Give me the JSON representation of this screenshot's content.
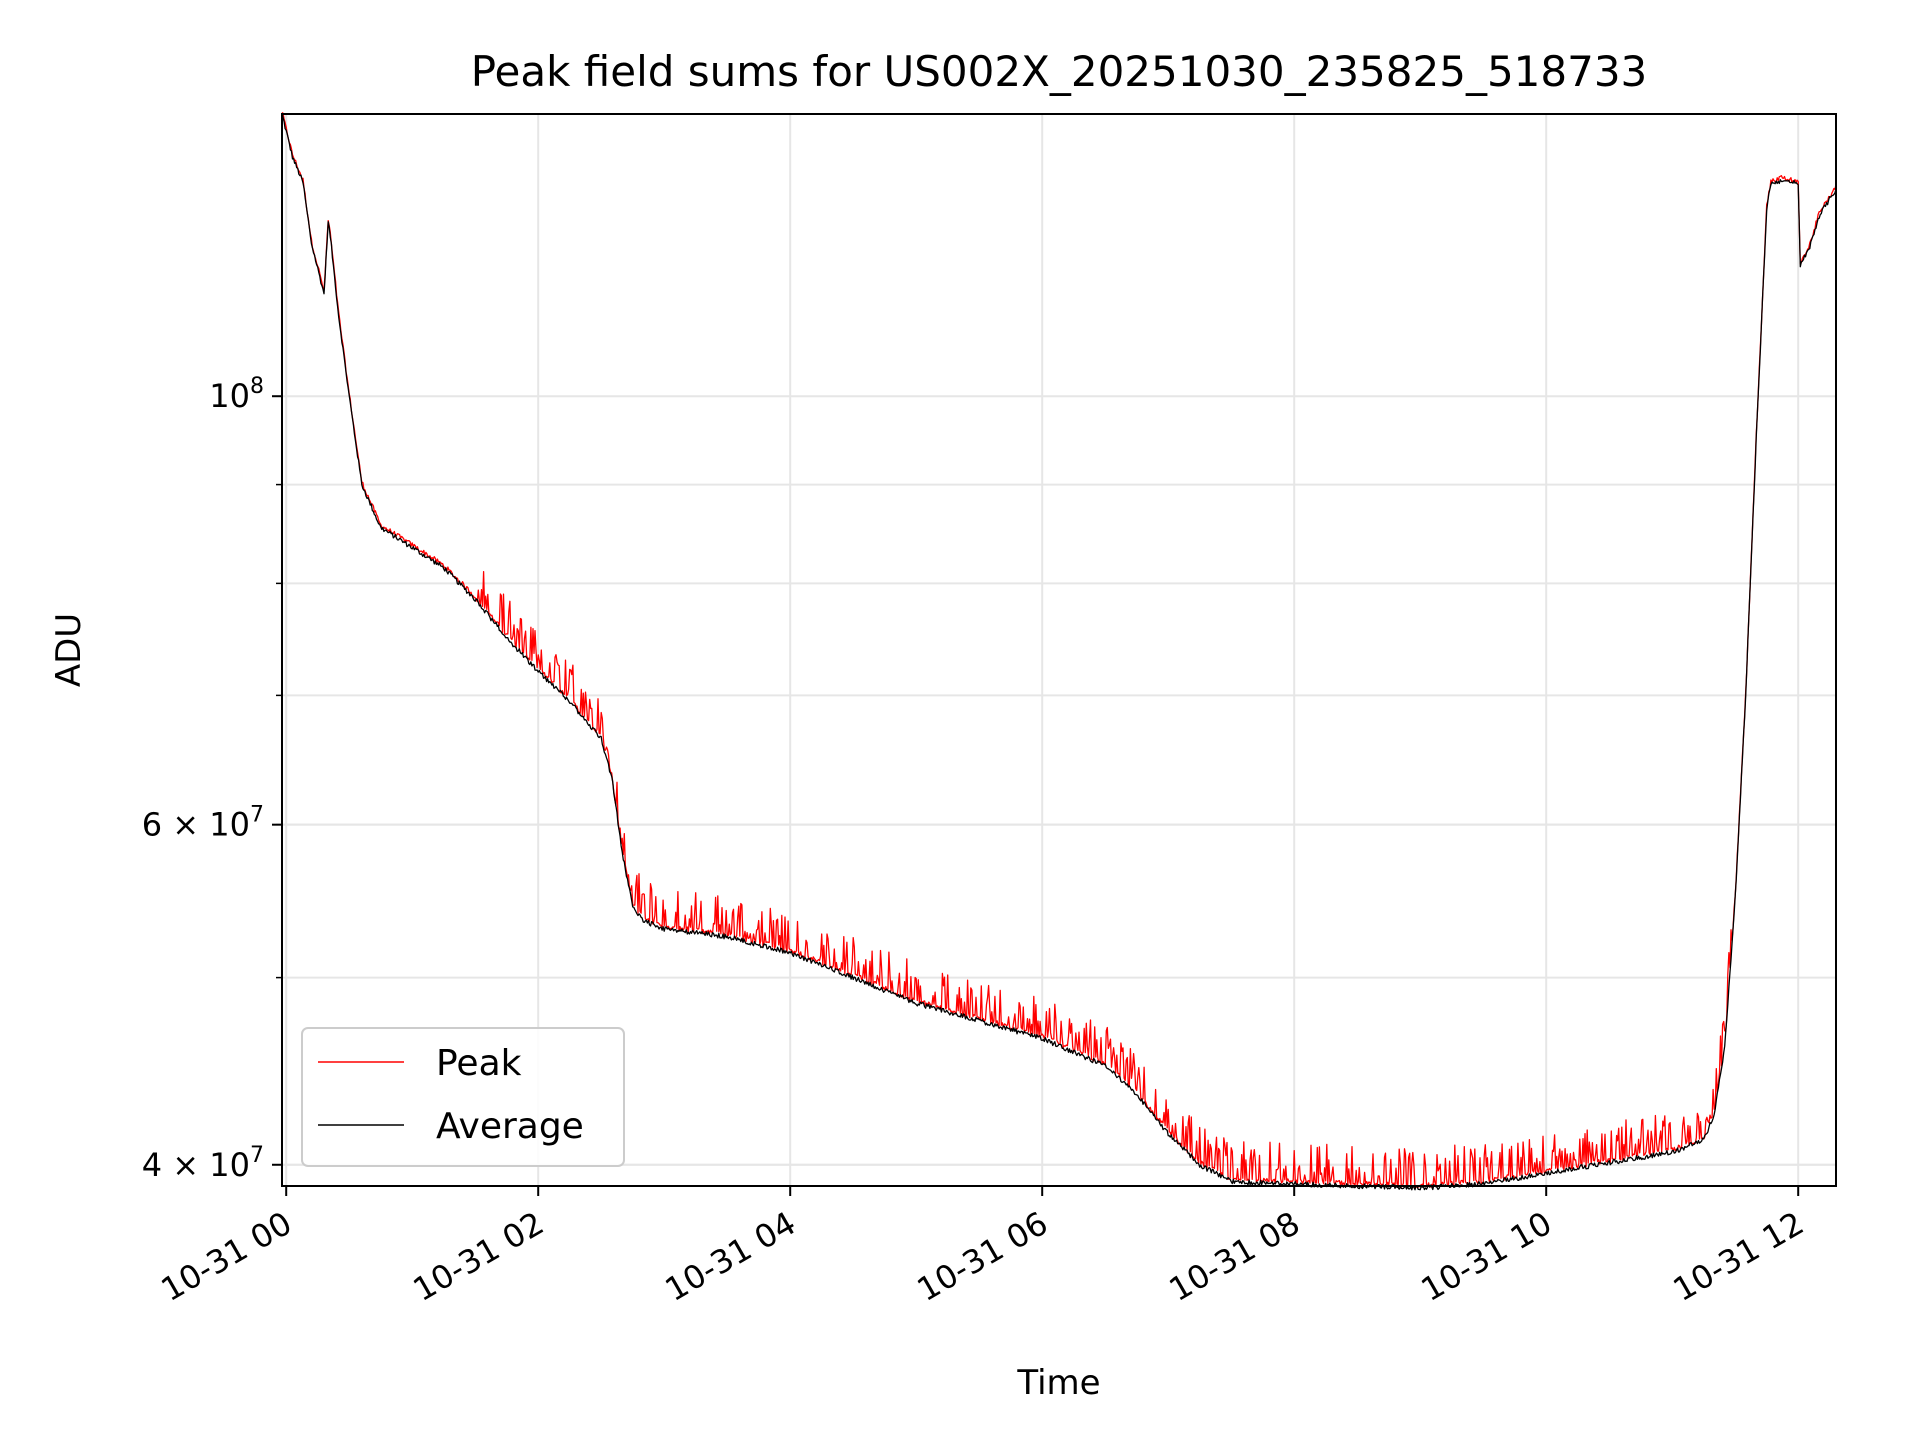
{
  "chart_data": {
    "type": "line",
    "title": "Peak field sums for US002X_20251030_235825_518733",
    "xlabel": "Time",
    "ylabel": "ADU",
    "yscale": "log",
    "xlim": [
      "10-30 23:58",
      "10-31 12:18"
    ],
    "ylim": [
      39000000,
      140000000
    ],
    "grid": true,
    "legend_position": "lower-left",
    "x_ticks": [
      "10-31 00",
      "10-31 02",
      "10-31 04",
      "10-31 06",
      "10-31 08",
      "10-31 10",
      "10-31 12"
    ],
    "y_major_ticks": [
      {
        "value": 40000000,
        "mantissa": "4",
        "exponent": "7"
      },
      {
        "value": 60000000,
        "mantissa": "6",
        "exponent": "7"
      },
      {
        "value": 100000000,
        "mantissa": "",
        "exponent": "8"
      }
    ],
    "y_minor_ticks": [
      40000000,
      50000000,
      60000000,
      70000000,
      80000000,
      90000000
    ],
    "series": [
      {
        "name": "Peak",
        "color": "#ff0000",
        "noise": "spiky"
      },
      {
        "name": "Average",
        "color": "#000000",
        "noise": "smooth"
      }
    ],
    "x": [
      "10-30 23:58",
      "10-31 00:03",
      "10-31 00:08",
      "10-31 00:12",
      "10-31 00:18",
      "10-31 00:20",
      "10-31 00:21",
      "10-31 00:25",
      "10-31 00:30",
      "10-31 00:36",
      "10-31 00:45",
      "10-31 01:00",
      "10-31 01:15",
      "10-31 01:30",
      "10-31 01:45",
      "10-31 02:00",
      "10-31 02:15",
      "10-31 02:30",
      "10-31 02:35",
      "10-31 02:40",
      "10-31 02:45",
      "10-31 02:50",
      "10-31 03:00",
      "10-31 03:30",
      "10-31 04:00",
      "10-31 04:30",
      "10-31 05:00",
      "10-31 05:30",
      "10-31 06:00",
      "10-31 06:30",
      "10-31 06:45",
      "10-31 07:00",
      "10-31 07:15",
      "10-31 07:30",
      "10-31 08:00",
      "10-31 08:30",
      "10-31 09:00",
      "10-31 09:30",
      "10-31 10:00",
      "10-31 10:30",
      "10-31 11:00",
      "10-31 11:15",
      "10-31 11:20",
      "10-31 11:25",
      "10-31 11:30",
      "10-31 11:35",
      "10-31 11:40",
      "10-31 11:45",
      "10-31 11:47",
      "10-31 11:50",
      "10-31 11:52",
      "10-31 11:55",
      "10-31 11:58",
      "10-31 12:00",
      "10-31 12:01",
      "10-31 12:05",
      "10-31 12:10",
      "10-31 12:18"
    ],
    "y": [
      140000000,
      133000000,
      129000000,
      120000000,
      113000000,
      123000000,
      121000000,
      110000000,
      100000000,
      90000000,
      85500000,
      83500000,
      81500000,
      78500000,
      75000000,
      72000000,
      69500000,
      66500000,
      63500000,
      58000000,
      54500000,
      53500000,
      53000000,
      52500000,
      51500000,
      50000000,
      48500000,
      47500000,
      46500000,
      45000000,
      43500000,
      41500000,
      40000000,
      39200000,
      39100000,
      39000000,
      38900000,
      39100000,
      39600000,
      40100000,
      40600000,
      41200000,
      42500000,
      46000000,
      55000000,
      70000000,
      95000000,
      125000000,
      129000000,
      129000000,
      129500000,
      129000000,
      129000000,
      128500000,
      117000000,
      119000000,
      124000000,
      128000000
    ]
  }
}
